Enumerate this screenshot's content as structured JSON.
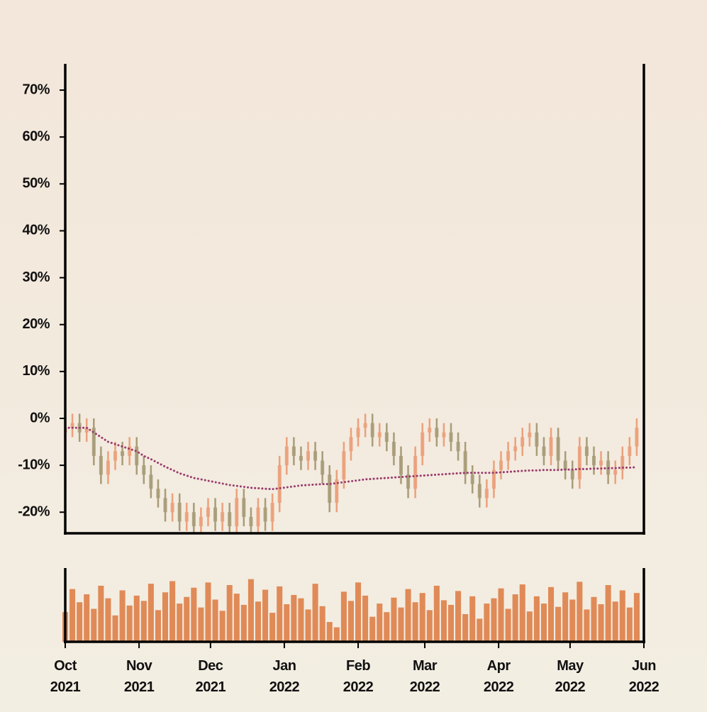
{
  "chart_data": {
    "type": "candlestick",
    "x": [
      "2021-10-01",
      "2021-10-04",
      "2021-10-07",
      "2021-10-10",
      "2021-10-13",
      "2021-10-16",
      "2021-10-19",
      "2021-10-22",
      "2021-10-25",
      "2021-10-28",
      "2021-10-31",
      "2021-11-03",
      "2021-11-06",
      "2021-11-09",
      "2021-11-12",
      "2021-11-15",
      "2021-11-18",
      "2021-11-21",
      "2021-11-24",
      "2021-11-27",
      "2021-11-30",
      "2021-12-03",
      "2021-12-06",
      "2021-12-09",
      "2021-12-12",
      "2021-12-15",
      "2021-12-18",
      "2021-12-21",
      "2021-12-24",
      "2021-12-27",
      "2021-12-30",
      "2022-01-02",
      "2022-01-05",
      "2022-01-08",
      "2022-01-11",
      "2022-01-14",
      "2022-01-17",
      "2022-01-20",
      "2022-01-23",
      "2022-01-26",
      "2022-01-29",
      "2022-02-01",
      "2022-02-04",
      "2022-02-07",
      "2022-02-10",
      "2022-02-13",
      "2022-02-16",
      "2022-02-19",
      "2022-02-22",
      "2022-02-25",
      "2022-02-28",
      "2022-03-03",
      "2022-03-06",
      "2022-03-09",
      "2022-03-12",
      "2022-03-15",
      "2022-03-18",
      "2022-03-21",
      "2022-03-24",
      "2022-03-27",
      "2022-03-30",
      "2022-04-02",
      "2022-04-05",
      "2022-04-08",
      "2022-04-11",
      "2022-04-14",
      "2022-04-17",
      "2022-04-20",
      "2022-04-23",
      "2022-04-26",
      "2022-04-29",
      "2022-05-02",
      "2022-05-05",
      "2022-05-08",
      "2022-05-11",
      "2022-05-14",
      "2022-05-17",
      "2022-05-20",
      "2022-05-23",
      "2022-05-26",
      "2022-05-29"
    ],
    "open": [
      -3,
      -2,
      -1,
      -3,
      -2,
      -8,
      -12,
      -9,
      -7,
      -8,
      -6,
      -10,
      -12,
      -15,
      -17,
      -20,
      -18,
      -22,
      -20,
      -23,
      -21,
      -19,
      -22,
      -20,
      -23,
      -17,
      -21,
      -23,
      -19,
      -22,
      -18,
      -10,
      -6,
      -8,
      -9,
      -7,
      -9,
      -12,
      -18,
      -13,
      -7,
      -4,
      -2,
      -1,
      -4,
      -3,
      -5,
      -8,
      -12,
      -15,
      -8,
      -3,
      -2,
      -4,
      -3,
      -5,
      -7,
      -12,
      -14,
      -17,
      -15,
      -11,
      -9,
      -7,
      -6,
      -4,
      -3,
      -6,
      -8,
      -4,
      -9,
      -11,
      -13,
      -6,
      -8,
      -10,
      -9,
      -12,
      -11,
      -8,
      -6
    ],
    "high": [
      0,
      1,
      1,
      0,
      0,
      -6,
      -7,
      -5,
      -5,
      -4,
      -4,
      -8,
      -10,
      -13,
      -15,
      -16,
      -16,
      -18,
      -18,
      -19,
      -17,
      -17,
      -18,
      -18,
      -15,
      -15,
      -19,
      -17,
      -17,
      -16,
      -8,
      -4,
      -4,
      -6,
      -5,
      -5,
      -7,
      -10,
      -11,
      -5,
      -2,
      0,
      1,
      1,
      -1,
      -1,
      -3,
      -6,
      -10,
      -6,
      -1,
      0,
      0,
      -1,
      -1,
      -3,
      -5,
      -10,
      -12,
      -13,
      -9,
      -7,
      -5,
      -4,
      -2,
      -1,
      -1,
      -4,
      -2,
      -2,
      -7,
      -9,
      -4,
      -4,
      -6,
      -7,
      -7,
      -9,
      -6,
      -4,
      0
    ],
    "low": [
      -5,
      -4,
      -5,
      -5,
      -10,
      -14,
      -14,
      -11,
      -10,
      -10,
      -12,
      -14,
      -17,
      -19,
      -22,
      -22,
      -24,
      -24,
      -25,
      -25,
      -23,
      -24,
      -24,
      -25,
      -25,
      -23,
      -25,
      -25,
      -24,
      -24,
      -20,
      -12,
      -10,
      -11,
      -11,
      -11,
      -14,
      -20,
      -20,
      -15,
      -9,
      -6,
      -4,
      -6,
      -6,
      -7,
      -10,
      -14,
      -17,
      -17,
      -10,
      -5,
      -6,
      -6,
      -7,
      -9,
      -14,
      -16,
      -19,
      -19,
      -17,
      -13,
      -11,
      -9,
      -8,
      -6,
      -8,
      -10,
      -10,
      -11,
      -13,
      -15,
      -15,
      -10,
      -12,
      -12,
      -14,
      -14,
      -13,
      -10,
      -8
    ],
    "close": [
      -2,
      -1,
      -3,
      -2,
      -8,
      -12,
      -9,
      -7,
      -8,
      -6,
      -10,
      -12,
      -15,
      -17,
      -20,
      -18,
      -22,
      -20,
      -23,
      -21,
      -19,
      -22,
      -20,
      -23,
      -17,
      -21,
      -23,
      -19,
      -22,
      -18,
      -10,
      -6,
      -8,
      -9,
      -7,
      -9,
      -12,
      -18,
      -13,
      -7,
      -4,
      -2,
      -1,
      -4,
      -3,
      -5,
      -8,
      -12,
      -15,
      -8,
      -3,
      -2,
      -4,
      -3,
      -5,
      -7,
      -12,
      -14,
      -17,
      -15,
      -11,
      -9,
      -7,
      -6,
      -4,
      -3,
      -6,
      -8,
      -4,
      -9,
      -11,
      -13,
      -6,
      -8,
      -10,
      -9,
      -12,
      -11,
      -8,
      -6,
      -2
    ],
    "moving_average": [
      -2,
      -2,
      -2,
      -2,
      -3,
      -4,
      -5,
      -5.5,
      -6,
      -6.5,
      -7,
      -8,
      -8.7,
      -9.5,
      -10.3,
      -11,
      -11.7,
      -12.2,
      -12.7,
      -13,
      -13.3,
      -13.6,
      -13.9,
      -14.2,
      -14.4,
      -14.6,
      -14.8,
      -14.9,
      -15,
      -15.1,
      -14.9,
      -14.7,
      -14.5,
      -14.3,
      -14.2,
      -14.1,
      -14,
      -14,
      -13.8,
      -13.6,
      -13.4,
      -13.2,
      -13,
      -12.9,
      -12.8,
      -12.7,
      -12.6,
      -12.5,
      -12.4,
      -12.3,
      -12.2,
      -12.1,
      -12,
      -11.9,
      -11.8,
      -11.7,
      -11.6,
      -11.6,
      -11.6,
      -11.6,
      -11.6,
      -11.5,
      -11.4,
      -11.3,
      -11.2,
      -11.1,
      -11.1,
      -11,
      -11,
      -11,
      -10.9,
      -10.9,
      -10.8,
      -10.8,
      -10.7,
      -10.7,
      -10.6,
      -10.6,
      -10.5,
      -10.5,
      -10.4
    ],
    "volume": [
      45,
      80,
      60,
      72,
      50,
      85,
      66,
      40,
      78,
      55,
      70,
      62,
      88,
      48,
      75,
      92,
      58,
      68,
      82,
      52,
      90,
      64,
      47,
      86,
      73,
      56,
      95,
      61,
      79,
      44,
      84,
      57,
      71,
      66,
      49,
      88,
      54,
      30,
      22,
      76,
      62,
      90,
      70,
      38,
      58,
      45,
      67,
      52,
      80,
      60,
      74,
      48,
      85,
      63,
      56,
      77,
      42,
      69,
      35,
      58,
      66,
      81,
      50,
      72,
      87,
      46,
      69,
      58,
      83,
      53,
      75,
      64,
      91,
      49,
      68,
      57,
      86,
      61,
      78,
      52,
      74
    ],
    "up_color": "#eba17c",
    "down_color": "#a99c79",
    "ma_color": "#9a3b6d",
    "volume_color": "#e08a57",
    "ylim": [
      -24.5,
      75.3
    ],
    "yticks": [
      {
        "value": -20,
        "label": "-20%"
      },
      {
        "value": -10,
        "label": "-10%"
      },
      {
        "value": 0,
        "label": "0%"
      },
      {
        "value": 10,
        "label": "10%"
      },
      {
        "value": 20,
        "label": "20%"
      },
      {
        "value": 30,
        "label": "30%"
      },
      {
        "value": 40,
        "label": "40%"
      },
      {
        "value": 50,
        "label": "50%"
      },
      {
        "value": 60,
        "label": "60%"
      },
      {
        "value": 70,
        "label": "70%"
      }
    ],
    "xlim": [
      "2021-10-01",
      "2022-06-01"
    ],
    "xticks": [
      {
        "value": "2021-10-01",
        "label": "Oct 2021"
      },
      {
        "value": "2021-11-01",
        "label": "Nov 2021"
      },
      {
        "value": "2021-12-01",
        "label": "Dec 2021"
      },
      {
        "value": "2022-01-01",
        "label": "Jan 2022"
      },
      {
        "value": "2022-02-01",
        "label": "Feb 2022"
      },
      {
        "value": "2022-03-01",
        "label": "Mar 2022"
      },
      {
        "value": "2022-04-01",
        "label": "Apr 2022"
      },
      {
        "value": "2022-05-01",
        "label": "May 2022"
      },
      {
        "value": "2022-06-01",
        "label": "Jun 2022"
      }
    ],
    "volume_ylim": [
      0,
      100
    ]
  }
}
